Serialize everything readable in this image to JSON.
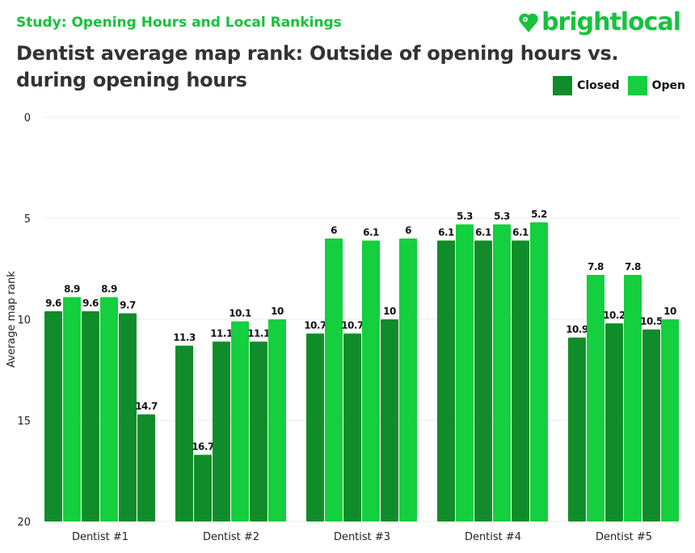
{
  "header": {
    "study": "Study: Opening Hours and Local Rankings",
    "title": "Dentist average map rank: Outside of opening hours vs. during opening hours",
    "logo": "brightlocal",
    "logo_icon": "heart-pin-icon"
  },
  "colors": {
    "Closed": "#118c2a",
    "Open": "#14cf3e",
    "brand": "#16c23c"
  },
  "chart_data": {
    "type": "bar",
    "title": "Dentist average map rank: Outside of opening hours vs. during opening hours",
    "xlabel": "",
    "ylabel": "Average map rank",
    "ylim": [
      0,
      20
    ],
    "y_inverted": true,
    "yticks": [
      0,
      5,
      10,
      15,
      20
    ],
    "grid": true,
    "legend": "top-right",
    "legend_entries": [
      "Closed",
      "Open"
    ],
    "categories": [
      "Dentist #1",
      "Dentist #2",
      "Dentist #3",
      "Dentist #4",
      "Dentist #5"
    ],
    "groups": [
      [
        {
          "s": "Closed",
          "v": 9.6
        },
        {
          "s": "Open",
          "v": 8.9
        },
        {
          "s": "Closed",
          "v": 9.6
        },
        {
          "s": "Open",
          "v": 8.9
        },
        {
          "s": "Closed",
          "v": 9.7
        },
        {
          "s": "Closed",
          "v": 14.7
        }
      ],
      [
        {
          "s": "Closed",
          "v": 11.3
        },
        {
          "s": "Closed",
          "v": 16.7
        },
        {
          "s": "Closed",
          "v": 11.1
        },
        {
          "s": "Open",
          "v": 10.1
        },
        {
          "s": "Closed",
          "v": 11.1
        },
        {
          "s": "Open",
          "v": 10
        }
      ],
      [
        {
          "s": "Closed",
          "v": 10.7
        },
        {
          "s": "Open",
          "v": 6
        },
        {
          "s": "Closed",
          "v": 10.7
        },
        {
          "s": "Open",
          "v": 6.1
        },
        {
          "s": "Closed",
          "v": 10
        },
        {
          "s": "Open",
          "v": 6
        }
      ],
      [
        {
          "s": "Closed",
          "v": 6.1
        },
        {
          "s": "Open",
          "v": 5.3
        },
        {
          "s": "Closed",
          "v": 6.1
        },
        {
          "s": "Open",
          "v": 5.3
        },
        {
          "s": "Closed",
          "v": 6.1
        },
        {
          "s": "Open",
          "v": 5.2
        }
      ],
      [
        {
          "s": "Closed",
          "v": 10.9
        },
        {
          "s": "Open",
          "v": 7.8
        },
        {
          "s": "Closed",
          "v": 10.2
        },
        {
          "s": "Open",
          "v": 7.8
        },
        {
          "s": "Closed",
          "v": 10.5
        },
        {
          "s": "Open",
          "v": 10
        }
      ]
    ]
  }
}
